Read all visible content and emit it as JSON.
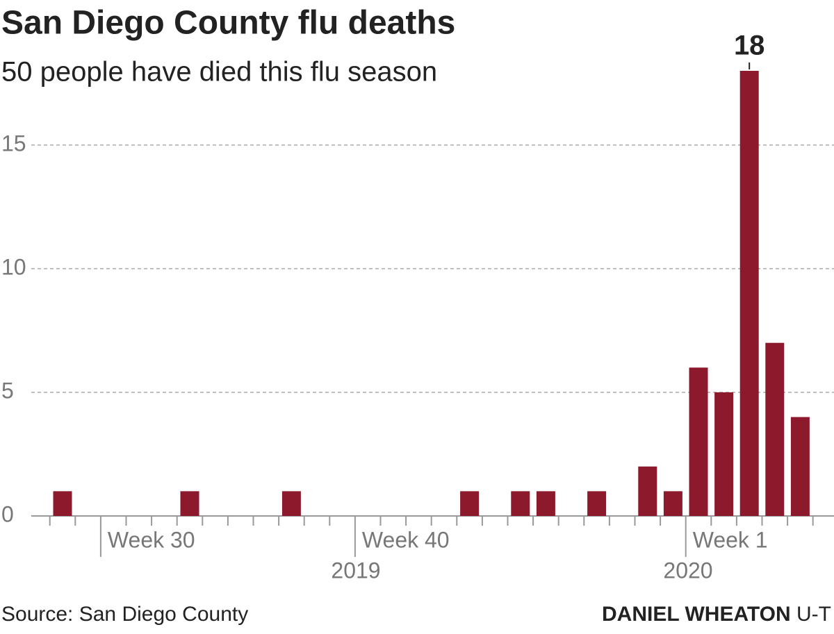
{
  "chart_data": {
    "type": "bar",
    "title": "San Diego County flu deaths",
    "subtitle": "50 people have died this flu season",
    "categories": [
      null,
      null,
      "Week 30",
      null,
      null,
      null,
      null,
      null,
      null,
      null,
      null,
      null,
      "Week 40",
      null,
      null,
      null,
      null,
      null,
      null,
      null,
      null,
      null,
      null,
      null,
      null,
      "Week 1",
      null,
      null,
      null,
      null
    ],
    "values": [
      1,
      0,
      0,
      0,
      0,
      1,
      0,
      0,
      0,
      1,
      0,
      0,
      0,
      0,
      0,
      0,
      1,
      0,
      1,
      1,
      0,
      1,
      0,
      2,
      1,
      6,
      5,
      18,
      7,
      4
    ],
    "color": "#8c1a2c",
    "ylim": [
      0,
      18
    ],
    "yticks": [
      0,
      5,
      10,
      15
    ],
    "grid": true,
    "year_labels": [
      "2019",
      "2020"
    ],
    "source": "Source: San Diego County",
    "credit": "DANIEL WHEATON",
    "credit_org": "U-T"
  }
}
